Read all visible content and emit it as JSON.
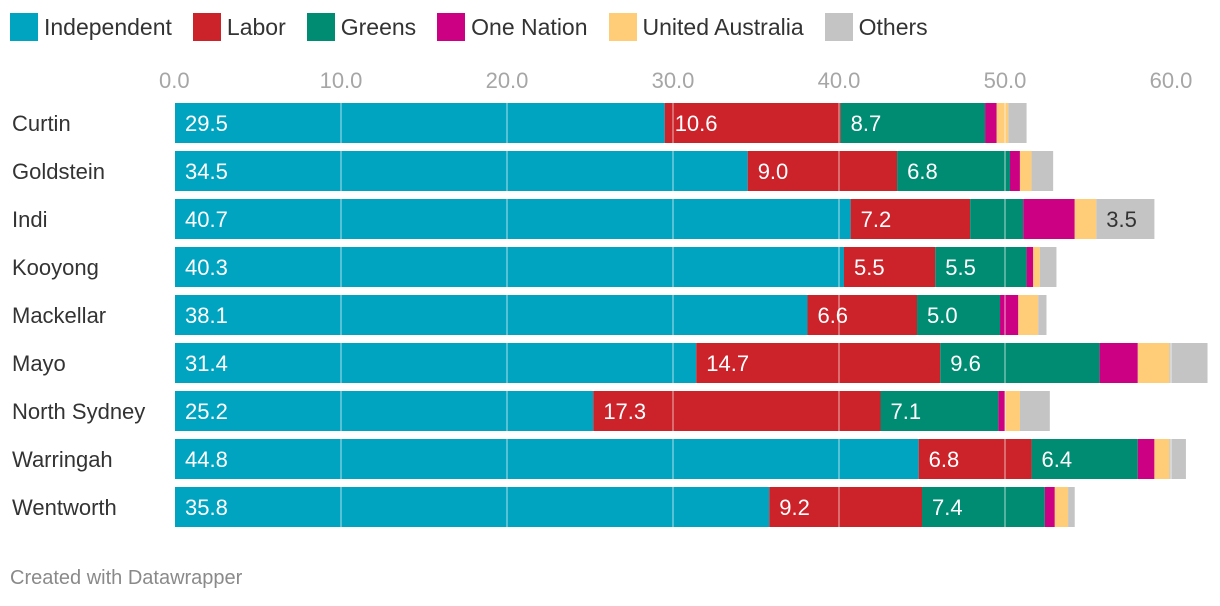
{
  "chart_data": {
    "type": "bar",
    "orientation": "horizontal",
    "stacked": true,
    "xlim": [
      0,
      60
    ],
    "ticks": [
      "0.0",
      "10.0",
      "20.0",
      "30.0",
      "40.0",
      "50.0",
      "60.0"
    ],
    "tick_values": [
      0,
      10,
      20,
      30,
      40,
      50,
      60
    ],
    "grid": true,
    "legend_position": "top-left",
    "categories": [
      "Curtin",
      "Goldstein",
      "Indi",
      "Kooyong",
      "Mackellar",
      "Mayo",
      "North Sydney",
      "Warringah",
      "Wentworth"
    ],
    "series": [
      {
        "name": "Independent",
        "color": "#00a4c0",
        "values": [
          29.5,
          34.5,
          40.7,
          40.3,
          38.1,
          31.4,
          25.2,
          44.8,
          35.8
        ],
        "labels": [
          "29.5",
          "34.5",
          "40.7",
          "40.3",
          "38.1",
          "31.4",
          "25.2",
          "44.8",
          "35.8"
        ]
      },
      {
        "name": "Labor",
        "color": "#cc2229",
        "values": [
          10.6,
          9.0,
          7.2,
          5.5,
          6.6,
          14.7,
          17.3,
          6.8,
          9.2
        ],
        "labels": [
          "10.6",
          "9.0",
          "7.2",
          "5.5",
          "6.6",
          "14.7",
          "17.3",
          "6.8",
          "9.2"
        ]
      },
      {
        "name": "Greens",
        "color": "#008c72",
        "values": [
          8.7,
          6.8,
          3.2,
          5.5,
          5.0,
          9.6,
          7.1,
          6.4,
          7.4
        ],
        "labels": [
          "8.7",
          "6.8",
          "",
          "5.5",
          "5.0",
          "9.6",
          "7.1",
          "6.4",
          "7.4"
        ]
      },
      {
        "name": "One Nation",
        "color": "#cc0083",
        "values": [
          0.7,
          0.6,
          3.1,
          0.4,
          1.1,
          2.3,
          0.4,
          1.0,
          0.6
        ],
        "labels": [
          "",
          "",
          "",
          "",
          "",
          "",
          "",
          "",
          ""
        ]
      },
      {
        "name": "United Australia",
        "color": "#ffcc77",
        "values": [
          0.7,
          0.7,
          1.3,
          0.4,
          1.2,
          1.9,
          0.9,
          0.9,
          0.8
        ],
        "labels": [
          "",
          "",
          "",
          "",
          "",
          "",
          "",
          "",
          ""
        ]
      },
      {
        "name": "Others",
        "color": "#c4c4c4",
        "values": [
          1.1,
          1.3,
          3.5,
          1.0,
          0.5,
          2.3,
          1.8,
          1.0,
          0.4
        ],
        "labels": [
          "",
          "",
          "3.5",
          "",
          "",
          "",
          "",
          "",
          ""
        ]
      }
    ]
  },
  "footer": {
    "credit": "Created with Datawrapper"
  }
}
